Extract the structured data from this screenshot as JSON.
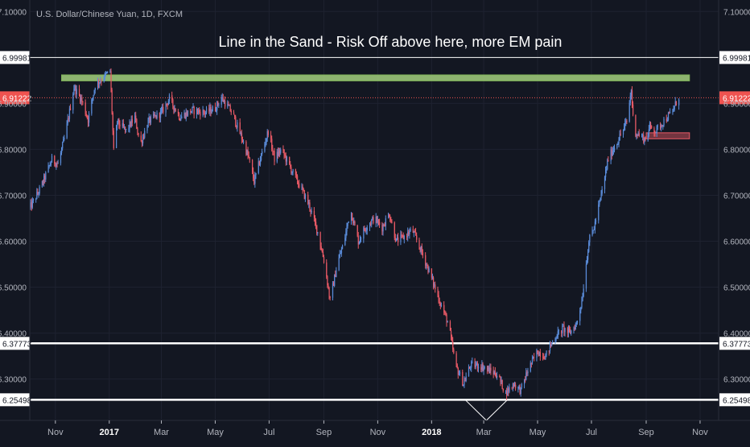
{
  "symbol_label": "U.S. Dollar/Chinese Yuan, 1D, FXCM",
  "colors": {
    "background": "#131722",
    "up": "#5b8ddb",
    "down": "#ea5a66",
    "axis_text": "#b2b5be",
    "grid": "#1e2230",
    "white_line": "#ffffff",
    "green_zone": "#a5d07e",
    "red_zone": "#ea5a66",
    "price_badge": "#ef5350"
  },
  "chart_data": {
    "type": "candlestick",
    "title": "Line in the Sand - Risk Off above here, more EM pain",
    "ylim": [
      6.21,
      7.125
    ],
    "y_ticks": [
      {
        "value": 7.1,
        "label": "7.10000"
      },
      {
        "value": 6.9,
        "label": "6.90000"
      },
      {
        "value": 6.8,
        "label": "6.80000"
      },
      {
        "value": 6.7,
        "label": "6.70000"
      },
      {
        "value": 6.6,
        "label": "6.60000"
      },
      {
        "value": 6.5,
        "label": "6.50000"
      },
      {
        "value": 6.4,
        "label": "6.40000"
      },
      {
        "value": 6.3,
        "label": "6.30000"
      }
    ],
    "x_ticks": [
      {
        "date": "2016-11-01",
        "label": "Nov",
        "bold": false
      },
      {
        "date": "2017-01-01",
        "label": "2017",
        "bold": true
      },
      {
        "date": "2017-03-01",
        "label": "Mar",
        "bold": false
      },
      {
        "date": "2017-05-01",
        "label": "May",
        "bold": false
      },
      {
        "date": "2017-07-01",
        "label": "Jul",
        "bold": false
      },
      {
        "date": "2017-09-01",
        "label": "Sep",
        "bold": false
      },
      {
        "date": "2017-11-01",
        "label": "Nov",
        "bold": false
      },
      {
        "date": "2018-01-01",
        "label": "2018",
        "bold": true
      },
      {
        "date": "2018-03-01",
        "label": "Mar",
        "bold": false
      },
      {
        "date": "2018-05-01",
        "label": "May",
        "bold": false
      },
      {
        "date": "2018-07-01",
        "label": "Jul",
        "bold": false
      },
      {
        "date": "2018-09-01",
        "label": "Sep",
        "bold": false
      },
      {
        "date": "2018-11-01",
        "label": "Nov",
        "bold": false
      }
    ],
    "x_range": [
      "2016-10-03",
      "2018-11-22"
    ],
    "series": [
      {
        "date": "2016-10-03",
        "close": 6.672
      },
      {
        "date": "2016-10-15",
        "close": 6.715
      },
      {
        "date": "2016-10-28",
        "close": 6.778
      },
      {
        "date": "2016-11-04",
        "close": 6.768
      },
      {
        "date": "2016-11-12",
        "close": 6.83
      },
      {
        "date": "2016-11-22",
        "close": 6.935
      },
      {
        "date": "2016-11-30",
        "close": 6.91
      },
      {
        "date": "2016-12-08",
        "close": 6.865
      },
      {
        "date": "2016-12-16",
        "close": 6.94
      },
      {
        "date": "2016-12-26",
        "close": 6.958
      },
      {
        "date": "2017-01-02",
        "close": 6.97
      },
      {
        "date": "2017-01-06",
        "close": 6.795
      },
      {
        "date": "2017-01-10",
        "close": 6.86
      },
      {
        "date": "2017-01-20",
        "close": 6.84
      },
      {
        "date": "2017-01-30",
        "close": 6.87
      },
      {
        "date": "2017-02-05",
        "close": 6.81
      },
      {
        "date": "2017-02-14",
        "close": 6.86
      },
      {
        "date": "2017-03-01",
        "close": 6.88
      },
      {
        "date": "2017-03-10",
        "close": 6.91
      },
      {
        "date": "2017-03-22",
        "close": 6.87
      },
      {
        "date": "2017-04-05",
        "close": 6.885
      },
      {
        "date": "2017-04-20",
        "close": 6.88
      },
      {
        "date": "2017-05-01",
        "close": 6.89
      },
      {
        "date": "2017-05-08",
        "close": 6.912
      },
      {
        "date": "2017-05-20",
        "close": 6.88
      },
      {
        "date": "2017-06-01",
        "close": 6.82
      },
      {
        "date": "2017-06-08",
        "close": 6.78
      },
      {
        "date": "2017-06-14",
        "close": 6.73
      },
      {
        "date": "2017-06-24",
        "close": 6.8
      },
      {
        "date": "2017-06-30",
        "close": 6.84
      },
      {
        "date": "2017-07-07",
        "close": 6.78
      },
      {
        "date": "2017-07-15",
        "close": 6.8
      },
      {
        "date": "2017-07-25",
        "close": 6.76
      },
      {
        "date": "2017-08-05",
        "close": 6.72
      },
      {
        "date": "2017-08-15",
        "close": 6.68
      },
      {
        "date": "2017-08-25",
        "close": 6.62
      },
      {
        "date": "2017-09-02",
        "close": 6.55
      },
      {
        "date": "2017-09-08",
        "close": 6.47
      },
      {
        "date": "2017-09-16",
        "close": 6.55
      },
      {
        "date": "2017-09-24",
        "close": 6.6
      },
      {
        "date": "2017-10-01",
        "close": 6.67
      },
      {
        "date": "2017-10-10",
        "close": 6.6
      },
      {
        "date": "2017-10-18",
        "close": 6.63
      },
      {
        "date": "2017-10-28",
        "close": 6.65
      },
      {
        "date": "2017-11-06",
        "close": 6.63
      },
      {
        "date": "2017-11-14",
        "close": 6.66
      },
      {
        "date": "2017-11-22",
        "close": 6.6
      },
      {
        "date": "2017-12-01",
        "close": 6.61
      },
      {
        "date": "2017-12-10",
        "close": 6.625
      },
      {
        "date": "2017-12-20",
        "close": 6.58
      },
      {
        "date": "2017-12-30",
        "close": 6.53
      },
      {
        "date": "2018-01-10",
        "close": 6.47
      },
      {
        "date": "2018-01-20",
        "close": 6.42
      },
      {
        "date": "2018-01-28",
        "close": 6.33
      },
      {
        "date": "2018-02-06",
        "close": 6.29
      },
      {
        "date": "2018-02-14",
        "close": 6.33
      },
      {
        "date": "2018-02-24",
        "close": 6.33
      },
      {
        "date": "2018-03-06",
        "close": 6.32
      },
      {
        "date": "2018-03-16",
        "close": 6.31
      },
      {
        "date": "2018-03-26",
        "close": 6.27
      },
      {
        "date": "2018-04-04",
        "close": 6.29
      },
      {
        "date": "2018-04-12",
        "close": 6.275
      },
      {
        "date": "2018-04-20",
        "close": 6.32
      },
      {
        "date": "2018-05-01",
        "close": 6.36
      },
      {
        "date": "2018-05-10",
        "close": 6.35
      },
      {
        "date": "2018-05-20",
        "close": 6.39
      },
      {
        "date": "2018-05-30",
        "close": 6.41
      },
      {
        "date": "2018-06-06",
        "close": 6.4
      },
      {
        "date": "2018-06-14",
        "close": 6.42
      },
      {
        "date": "2018-06-20",
        "close": 6.47
      },
      {
        "date": "2018-06-28",
        "close": 6.6
      },
      {
        "date": "2018-07-04",
        "close": 6.63
      },
      {
        "date": "2018-07-12",
        "close": 6.7
      },
      {
        "date": "2018-07-20",
        "close": 6.78
      },
      {
        "date": "2018-07-31",
        "close": 6.82
      },
      {
        "date": "2018-08-10",
        "close": 6.86
      },
      {
        "date": "2018-08-15",
        "close": 6.93
      },
      {
        "date": "2018-08-18",
        "close": 6.84
      },
      {
        "date": "2018-08-25",
        "close": 6.83
      },
      {
        "date": "2018-09-01",
        "close": 6.82
      },
      {
        "date": "2018-09-05",
        "close": 6.85
      },
      {
        "date": "2018-09-12",
        "close": 6.84
      },
      {
        "date": "2018-09-20",
        "close": 6.86
      },
      {
        "date": "2018-09-30",
        "close": 6.88
      },
      {
        "date": "2018-10-08",
        "close": 6.915
      }
    ],
    "horizontal_lines": [
      {
        "value": 6.99981,
        "label": "6.99981",
        "style": "white"
      },
      {
        "value": 6.91222,
        "label": "6.91222",
        "style": "price-dotted"
      },
      {
        "value": 6.37773,
        "label": "6.37773",
        "style": "white-thick"
      },
      {
        "value": 6.25498,
        "label": "6.25498",
        "style": "white-thick"
      }
    ],
    "zones": [
      {
        "kind": "green",
        "from_date": "2016-11-08",
        "to_date": "2018-10-20",
        "top": 6.962,
        "bottom": 6.949
      },
      {
        "kind": "red",
        "from_date": "2018-09-01",
        "to_date": "2018-10-20",
        "top": 6.836,
        "bottom": 6.823
      }
    ],
    "annotation_points": [
      {
        "date": "2018-02-08",
        "value": 6.255
      },
      {
        "date": "2018-03-04",
        "value": 6.21
      },
      {
        "date": "2018-03-28",
        "value": 6.255
      }
    ]
  }
}
